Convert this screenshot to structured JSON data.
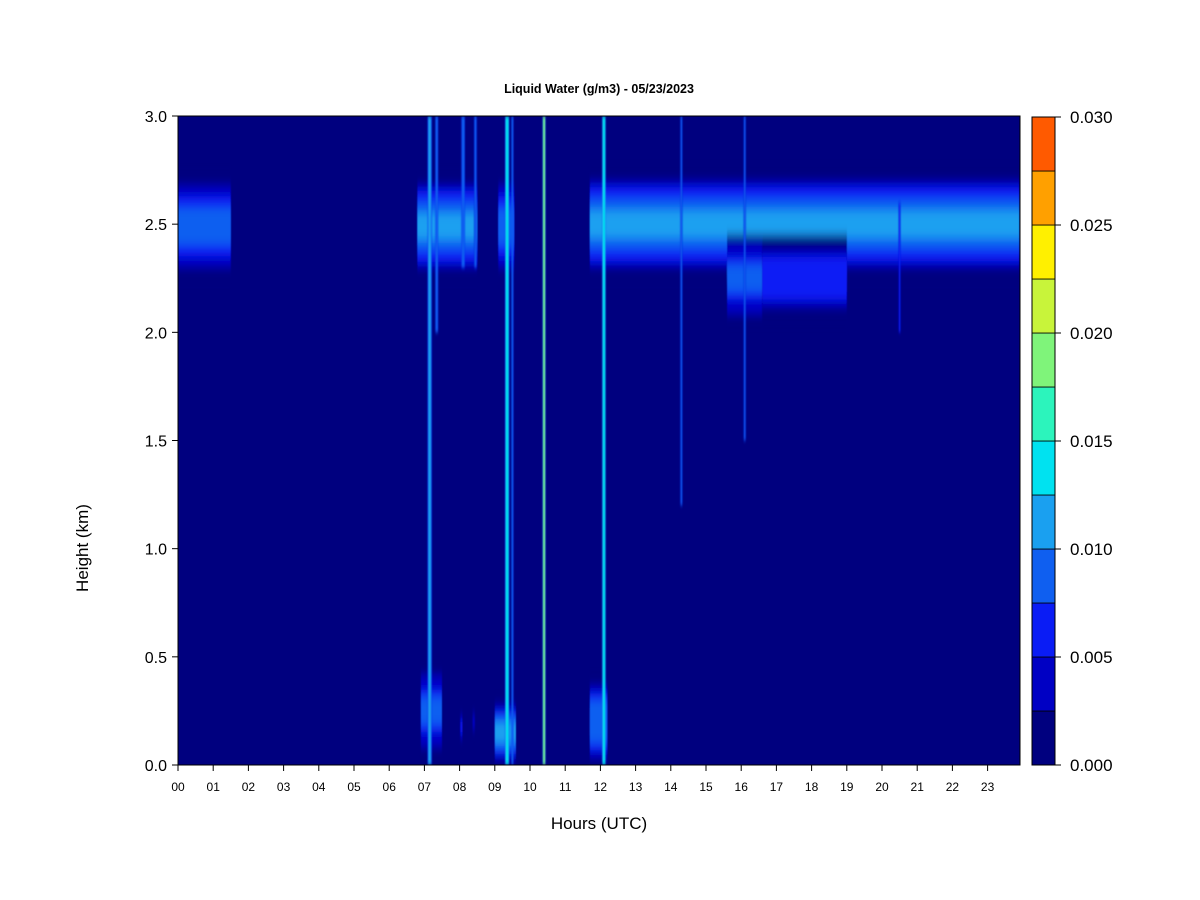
{
  "chart_data": {
    "type": "heatmap",
    "title": "Liquid Water (g/m3) - 05/23/2023",
    "xlabel": "Hours (UTC)",
    "ylabel": "Height (km)",
    "xlim": [
      0,
      23.9
    ],
    "ylim": [
      0,
      3.0
    ],
    "x_ticks": [
      "00",
      "01",
      "02",
      "03",
      "04",
      "05",
      "06",
      "07",
      "08",
      "09",
      "10",
      "11",
      "12",
      "13",
      "14",
      "15",
      "16",
      "17",
      "18",
      "19",
      "20",
      "21",
      "22",
      "23"
    ],
    "y_ticks": [
      "0.0",
      "0.5",
      "1.0",
      "1.5",
      "2.0",
      "2.5",
      "3.0"
    ],
    "colorbar": {
      "min": 0.0,
      "max": 0.03,
      "levels": [
        0.0,
        0.0025,
        0.005,
        0.0075,
        0.01,
        0.0125,
        0.015,
        0.0175,
        0.02,
        0.0225,
        0.025,
        0.0275,
        0.03
      ],
      "colors": [
        "#00007f",
        "#0000c4",
        "#0a1cf5",
        "#0f5ff0",
        "#1aa0f0",
        "#00e2f0",
        "#2cf4bc",
        "#7ff47a",
        "#c8f43a",
        "#fff000",
        "#ffa000",
        "#ff5a00",
        "#ff1a00",
        "#c80000",
        "#7f0000"
      ],
      "ticks": [
        "0.000",
        "0.005",
        "0.010",
        "0.015",
        "0.020",
        "0.025",
        "0.030"
      ],
      "background_color": "#00007f"
    },
    "cloud_layers": [
      {
        "x": [
          0.0,
          1.5
        ],
        "y": [
          2.25,
          2.73
        ],
        "peak": 0.011
      },
      {
        "x": [
          6.8,
          8.5
        ],
        "y": [
          2.25,
          2.73
        ],
        "peak": 0.012
      },
      {
        "x": [
          9.1,
          9.55
        ],
        "y": [
          2.25,
          2.73
        ],
        "peak": 0.01
      },
      {
        "x": [
          11.7,
          23.9
        ],
        "y": [
          2.25,
          2.75
        ],
        "peak": 0.012
      }
    ],
    "drizzle_bands": [
      {
        "x": [
          15.6,
          16.6
        ],
        "y": [
          2.05,
          2.45
        ],
        "peak": 0.01
      },
      {
        "x": [
          16.6,
          19.0
        ],
        "y": [
          2.05,
          2.45
        ],
        "peak": 0.008
      }
    ],
    "vertical_streaks": [
      {
        "x": 7.15,
        "width": 0.12,
        "y": [
          0.0,
          3.0
        ],
        "peak": 0.014
      },
      {
        "x": 7.35,
        "width": 0.08,
        "y": [
          2.0,
          3.0
        ],
        "peak": 0.012
      },
      {
        "x": 8.1,
        "width": 0.1,
        "y": [
          2.3,
          3.0
        ],
        "peak": 0.012
      },
      {
        "x": 8.45,
        "width": 0.08,
        "y": [
          2.3,
          3.0
        ],
        "peak": 0.011
      },
      {
        "x": 9.35,
        "width": 0.12,
        "y": [
          0.0,
          3.0
        ],
        "peak": 0.016
      },
      {
        "x": 9.5,
        "width": 0.06,
        "y": [
          0.0,
          3.0
        ],
        "peak": 0.012
      },
      {
        "x": 10.4,
        "width": 0.08,
        "y": [
          0.0,
          3.0
        ],
        "peak": 0.022
      },
      {
        "x": 12.1,
        "width": 0.1,
        "y": [
          0.0,
          3.0
        ],
        "peak": 0.018
      },
      {
        "x": 14.3,
        "width": 0.06,
        "y": [
          1.2,
          3.0
        ],
        "peak": 0.01
      },
      {
        "x": 16.1,
        "width": 0.06,
        "y": [
          1.5,
          3.0
        ],
        "peak": 0.01
      },
      {
        "x": 20.5,
        "width": 0.05,
        "y": [
          2.0,
          2.6
        ],
        "peak": 0.008
      }
    ],
    "surface_patches": [
      {
        "x": [
          6.9,
          7.5
        ],
        "y": [
          0.05,
          0.45
        ],
        "peak": 0.01
      },
      {
        "x": 8.05,
        "y": [
          0.1,
          0.25
        ],
        "peak": 0.007
      },
      {
        "x": 8.4,
        "y": [
          0.15,
          0.25
        ],
        "peak": 0.006
      },
      {
        "x": [
          9.0,
          9.6
        ],
        "y": [
          0.0,
          0.3
        ],
        "peak": 0.014
      },
      {
        "x": [
          11.7,
          12.2
        ],
        "y": [
          0.0,
          0.4
        ],
        "peak": 0.012
      }
    ]
  }
}
